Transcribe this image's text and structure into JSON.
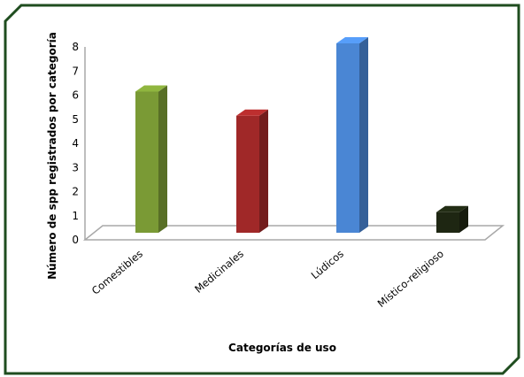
{
  "chart_data": {
    "type": "bar",
    "title": "",
    "categories": [
      "Comestibles",
      "Medicinales",
      "Lúdicos",
      "Místico-religioso"
    ],
    "series": [
      {
        "values": [
          6,
          5,
          8,
          1
        ]
      }
    ],
    "xlabel": "Categorías de uso",
    "ylabel": "Número de spp registrados por categoría",
    "ylim": [
      0,
      8
    ],
    "yticks": [
      "0",
      "1",
      "2",
      "3",
      "4",
      "5",
      "6",
      "7",
      "8"
    ],
    "bar_colors": [
      "#7a9a35",
      "#a02828",
      "#4a86d4",
      "#1e2612"
    ],
    "legend": "none",
    "grid": false
  },
  "frame": {
    "border_color": "#1f4d1f"
  }
}
